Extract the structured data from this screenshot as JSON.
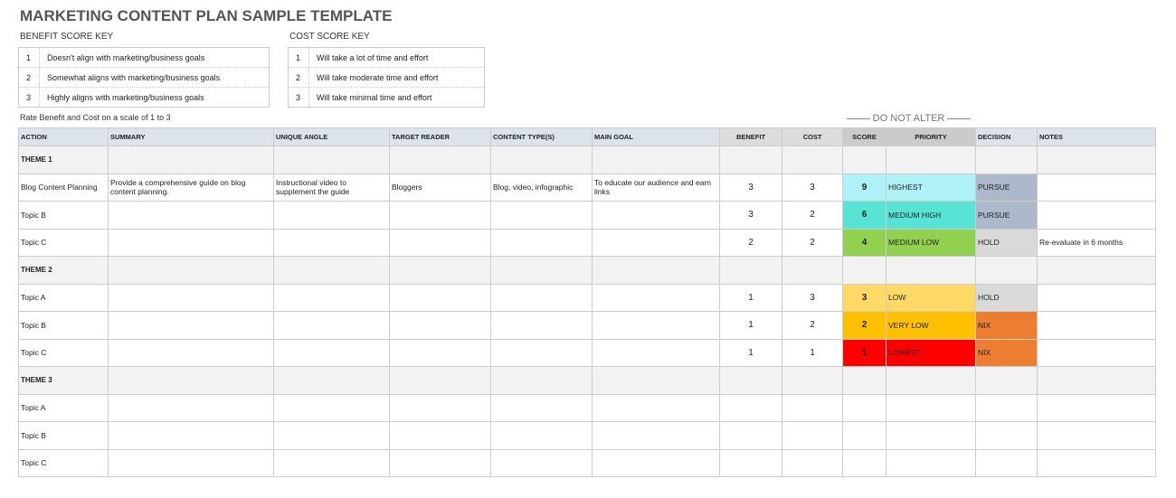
{
  "title": "MARKETING CONTENT PLAN SAMPLE TEMPLATE",
  "benefit_key": {
    "label": "BENEFIT SCORE KEY",
    "items": [
      {
        "n": "1",
        "text": "Doesn't align with marketing/business goals"
      },
      {
        "n": "2",
        "text": "Somewhat aligns with marketing/business goals"
      },
      {
        "n": "3",
        "text": "Highly aligns with marketing/business goals"
      }
    ]
  },
  "cost_key": {
    "label": "COST SCORE KEY",
    "items": [
      {
        "n": "1",
        "text": "Will take a lot of time and effort"
      },
      {
        "n": "2",
        "text": "Will take moderate time and effort"
      },
      {
        "n": "3",
        "text": "Will take minimal time and effort"
      }
    ]
  },
  "note": "Rate Benefit and Cost on a scale of 1 to 3",
  "do_not_alter": "DO NOT ALTER",
  "headers": [
    "ACTION",
    "SUMMARY",
    "UNIQUE ANGLE",
    "TARGET READER",
    "CONTENT TYPE(S)",
    "MAIN GOAL",
    "BENEFIT",
    "COST",
    "SCORE",
    "PRIORITY",
    "DECISION",
    "NOTES"
  ],
  "colors": {
    "HIGHEST": "#aef2f8",
    "MEDIUM HIGH": "#58e4d4",
    "MEDIUM LOW": "#92d050",
    "LOW": "#ffd966",
    "VERY LOW": "#ffc000",
    "LOWEST": "#ff0000",
    "PURSUE": "#acb9ca",
    "HOLD": "#d9d9d9",
    "NIX": "#ed7d31"
  },
  "rows": [
    {
      "theme": true,
      "action": "THEME 1"
    },
    {
      "action": "Blog Content Planning",
      "summary": "Provide a comprehensive guide on blog content planning.",
      "angle": "Instructional video to supplement the guide",
      "reader": "Bloggers",
      "type": "Blog, video, infographic",
      "goal": "To educate our audience and earn links",
      "benefit": "3",
      "cost": "3",
      "score": "9",
      "priority": "HIGHEST",
      "decision": "PURSUE",
      "notes": ""
    },
    {
      "action": "Topic B",
      "benefit": "3",
      "cost": "2",
      "score": "6",
      "priority": "MEDIUM HIGH",
      "decision": "PURSUE"
    },
    {
      "action": "Topic C",
      "benefit": "2",
      "cost": "2",
      "score": "4",
      "priority": "MEDIUM LOW",
      "decision": "HOLD",
      "notes": "Re-evaluate in 6 months"
    },
    {
      "theme": true,
      "action": "THEME 2"
    },
    {
      "action": "Topic A",
      "benefit": "1",
      "cost": "3",
      "score": "3",
      "priority": "LOW",
      "decision": "HOLD"
    },
    {
      "action": "Topic B",
      "benefit": "1",
      "cost": "2",
      "score": "2",
      "priority": "VERY LOW",
      "decision": "NIX"
    },
    {
      "action": "Topic C",
      "benefit": "1",
      "cost": "1",
      "score": "1",
      "priority": "LOWEST",
      "decision": "NIX"
    },
    {
      "theme": true,
      "action": "THEME 3"
    },
    {
      "action": "Topic A"
    },
    {
      "action": "Topic B"
    },
    {
      "action": "Topic C"
    }
  ]
}
